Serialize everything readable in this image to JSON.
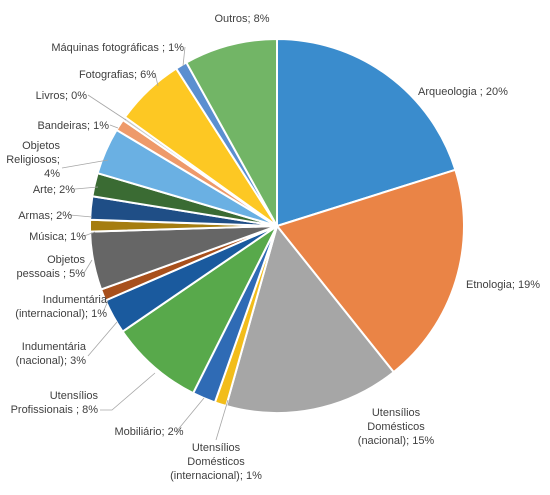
{
  "chart_data": {
    "type": "pie",
    "title": "",
    "slices": [
      {
        "label": [
          "Arqueologia ; 20%"
        ],
        "value": 20,
        "color": "#3a8ccd"
      },
      {
        "label": [
          "Etnologia; 19%"
        ],
        "value": 19,
        "color": "#ea8446"
      },
      {
        "label": [
          "Utensílios",
          "Domésticos",
          "(nacional); 15%"
        ],
        "value": 15,
        "color": "#a6a6a6"
      },
      {
        "label": [
          "Utensílios",
          "Domésticos",
          "(internacional); 1%"
        ],
        "value": 1,
        "color": "#f2bd1b"
      },
      {
        "label": [
          "Mobiliário; 2%"
        ],
        "value": 2,
        "color": "#2f6bb5"
      },
      {
        "label": [
          "Utensílios",
          "Profissionais  ; 8%"
        ],
        "value": 8,
        "color": "#58a94b"
      },
      {
        "label": [
          "Indumentária",
          "(nacional); 3%"
        ],
        "value": 3,
        "color": "#1a5a9e"
      },
      {
        "label": [
          "Indumentária",
          "(internacional); 1%"
        ],
        "value": 1,
        "color": "#a8501c"
      },
      {
        "label": [
          "Objetos",
          "pessoais ; 5%"
        ],
        "value": 5,
        "color": "#666666"
      },
      {
        "label": [
          "Música; 1%"
        ],
        "value": 1,
        "color": "#a57d10"
      },
      {
        "label": [
          "Armas; 2%"
        ],
        "value": 2,
        "color": "#1f4e86"
      },
      {
        "label": [
          "Arte; 2%"
        ],
        "value": 2,
        "color": "#3a6b33"
      },
      {
        "label": [
          "Objetos",
          "Religiosos;",
          "4%"
        ],
        "value": 4,
        "color": "#6ab0e3"
      },
      {
        "label": [
          "Bandeiras; 1%"
        ],
        "value": 1,
        "color": "#ee9a6a"
      },
      {
        "label": [
          "Livros; 0%"
        ],
        "value": 0.3,
        "color": "#c9c9c9"
      },
      {
        "label": [
          "Fotografias; 6%"
        ],
        "value": 6,
        "color": "#fdc823"
      },
      {
        "label": [
          "Máquinas fotográficas ; 1%"
        ],
        "value": 1,
        "color": "#5b8fd0"
      },
      {
        "label": [
          "Outros; 8%"
        ],
        "value": 8,
        "color": "#72b566"
      }
    ]
  }
}
